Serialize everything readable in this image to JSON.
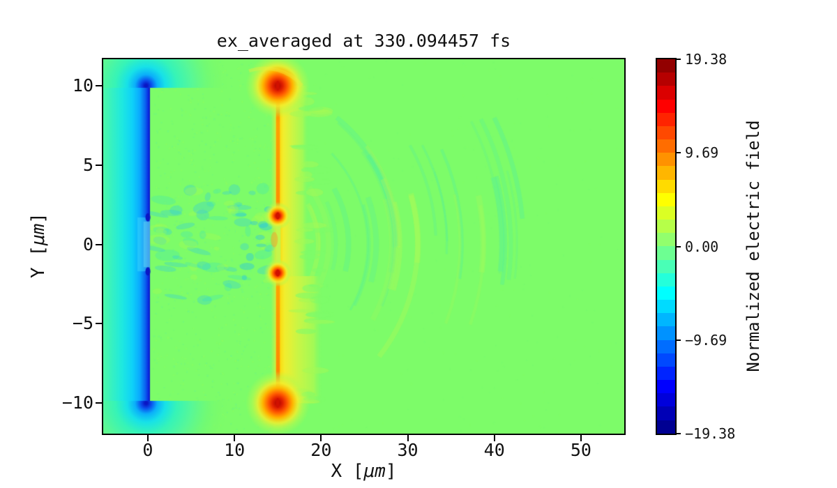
{
  "figure": {
    "background": "#ffffff"
  },
  "chart_data": {
    "type": "heatmap",
    "title": "ex_averaged at 330.094457 fs",
    "xlabel": {
      "pre": "X [",
      "unit": "μm",
      "post": "]"
    },
    "ylabel": {
      "pre": "Y [",
      "unit": "μm",
      "post": "]"
    },
    "xlim": [
      -5.15,
      55.0
    ],
    "ylim": [
      -11.93,
      11.67
    ],
    "xticks": {
      "values": [
        0,
        10,
        20,
        30,
        40,
        50
      ],
      "labels": [
        "0",
        "10",
        "20",
        "30",
        "40",
        "50"
      ]
    },
    "yticks": {
      "values": [
        10,
        5,
        0,
        -5,
        -10
      ],
      "labels": [
        "10",
        "5",
        "0",
        "−5",
        "−10"
      ]
    },
    "grid": false,
    "colorbar": {
      "label": "Normalized electric field",
      "cmap": "jet",
      "levels": 28,
      "vmin": -19.38,
      "vmax": 19.38,
      "ticks": [
        {
          "value": 19.38,
          "label": "19.38"
        },
        {
          "value": 9.69,
          "label": "9.69"
        },
        {
          "value": 0.0,
          "label": "0.00"
        },
        {
          "value": -9.69,
          "label": "−9.69"
        },
        {
          "value": -19.38,
          "label": "−19.38"
        }
      ]
    },
    "field": {
      "background_value": 0.0,
      "features": [
        {
          "name": "negative_sheath",
          "kind": "vertical_band",
          "x_um": 0,
          "x_extent_um": [
            -5.15,
            0.25
          ],
          "y_extent_um": [
            -10,
            10
          ],
          "peak_value": -19.38,
          "gap_y_um": [
            -1.7,
            1.7
          ]
        },
        {
          "name": "positive_sheath",
          "kind": "vertical_band",
          "x_um": 15,
          "x_extent_um": [
            14.2,
            20.0
          ],
          "y_extent_um": [
            -10,
            10
          ],
          "peak_value": 19.38,
          "gap_y_um": [
            -1.6,
            1.6
          ]
        },
        {
          "name": "hotspots",
          "kind": "points",
          "points_um": [
            [
              15,
              10
            ],
            [
              15,
              -10
            ],
            [
              15,
              1.8
            ],
            [
              15,
              -1.8
            ]
          ],
          "value": 19.38
        },
        {
          "name": "channel_turbulence",
          "kind": "patch",
          "x_extent_um": [
            0.5,
            14.5
          ],
          "y_extent_um": [
            -3.6,
            3.6
          ]
        },
        {
          "name": "wakefield_ripples",
          "kind": "arcs",
          "center_um": [
            10,
            0
          ],
          "zones": [
            {
              "radius_um": [
                7.5,
                11
              ],
              "count": 4,
              "tone": "yellow",
              "max_angle_deg": 65
            },
            {
              "radius_um": [
                11,
                19
              ],
              "count": 9,
              "tone": "teal",
              "max_angle_deg": 55
            },
            {
              "radius_um": [
                17,
                22.5
              ],
              "count": 6,
              "tone": "yellow",
              "max_angle_deg": 42
            },
            {
              "radius_um": [
                23,
                27
              ],
              "count": 4,
              "tone": "teal",
              "max_angle_deg": 36
            },
            {
              "radius_um": [
                26,
                30
              ],
              "count": 3,
              "tone": "yellow",
              "max_angle_deg": 28
            },
            {
              "radius_um": [
                30.5,
                34.5
              ],
              "count": 6,
              "tone": "teal",
              "max_angle_deg": 30
            }
          ]
        }
      ]
    }
  },
  "palette": {
    "background_green": "#7dfc69",
    "sheath_teal": "#4bf8a8",
    "sheath_cyan": "#1fe9e0",
    "sheath_blue": "#0aaaff",
    "sheath_dark_blue": "#0a16c4",
    "gap_light_cyan": "rgba(60,215,250,0.5)",
    "halo_yellow": "#f2ee2e",
    "halo_yellow_green": "#c9f646",
    "line_orange": "#ffa200",
    "hotspot_red": "#d01000",
    "hotspot_dark_red": "#b00500",
    "ripple_teal": "80,238,160",
    "ripple_yellow": "185,250,80",
    "speckle_light": "rgba(151,253,92,0.4)",
    "speckle_dark": "rgba(104,244,141,0.4)"
  }
}
